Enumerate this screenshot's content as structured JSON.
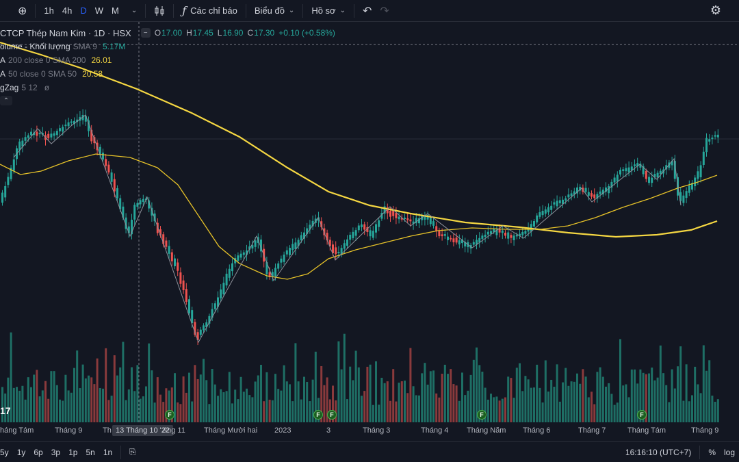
{
  "toolbar": {
    "intervals": [
      "1h",
      "4h",
      "D",
      "W",
      "M"
    ],
    "active_interval": "D",
    "indicators_label": "Các chỉ báo",
    "chart_label": "Biểu đồ",
    "profile_label": "Hồ sơ"
  },
  "legend": {
    "symbol": "CTCP Thép Nam Kim · 1D · HSX",
    "o_k": "O",
    "o": "17.00",
    "h_k": "H",
    "h": "17.45",
    "l_k": "L",
    "l": "16.90",
    "c_k": "C",
    "c": "17.30",
    "change": "+0.10 (+0.58%)",
    "volume_name": "olume - Khối lượng",
    "volume_params": "SMA 9",
    "volume_value": "5.17M",
    "ma200_name": "A",
    "ma200_params": "200 close 0 SMA 200",
    "ma200_value": "26.01",
    "ma50_name": "A",
    "ma50_params": "50 close 0 SMA 50",
    "ma50_value": "20.58",
    "zigzag_name": "gZag",
    "zigzag_params": "5 12",
    "zigzag_value": "ø"
  },
  "xaxis": {
    "labels": [
      "háng Tám",
      "Tháng 9",
      "Th",
      "13 Tháng 10 '22",
      "áng 11",
      "Tháng Mười hai",
      "2023",
      "3",
      "Tháng 3",
      "Tháng 4",
      "Tháng Năm",
      "Tháng 6",
      "Tháng 7",
      "Tháng Tám",
      "Tháng 9"
    ]
  },
  "bottombar": {
    "ranges": [
      "5y",
      "1y",
      "6p",
      "3p",
      "1p",
      "5n",
      "1n"
    ],
    "time": "16:16:10 (UTC+7)",
    "percent": "%",
    "log": "log"
  },
  "flags": [
    "F",
    "F",
    "F",
    "F",
    "F"
  ],
  "logo_text": "17",
  "colors": {
    "up": "#26a69a",
    "down": "#ef5350",
    "ma200": "#f5d742",
    "ma50": "#e6c229",
    "bg": "#131722"
  },
  "chart_data": {
    "type": "candlestick",
    "symbol": "CTCP Thép Nam Kim",
    "last": {
      "open": 17.0,
      "high": 17.45,
      "low": 16.9,
      "close": 17.3,
      "change": "+0.10 (+0.58%)"
    },
    "series": [
      {
        "name": "SMA 200",
        "last": 26.01
      },
      {
        "name": "SMA 50",
        "last": 20.58
      },
      {
        "name": "Volume SMA 9",
        "last": "5.17M"
      }
    ],
    "x_labels": [
      "háng Tám",
      "Tháng 9",
      "Th",
      "13 Tháng 10 '22",
      "áng 11",
      "Tháng Mười hai",
      "2023",
      "3",
      "Tháng 3",
      "Tháng 4",
      "Tháng Năm",
      "Tháng 6",
      "Tháng 7",
      "Tháng Tám",
      "Tháng 9"
    ]
  }
}
